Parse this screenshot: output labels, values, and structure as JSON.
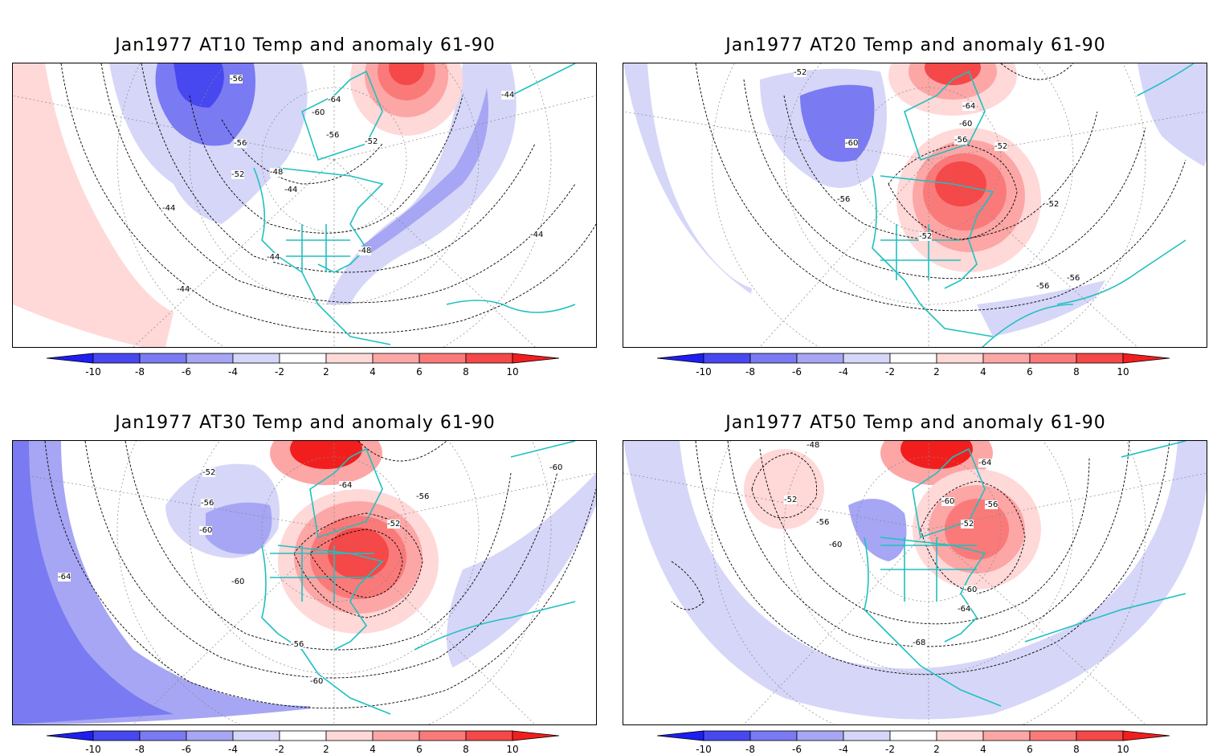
{
  "panels": [
    {
      "id": "at10",
      "title": "Jan1977 AT10 Temp and anomaly 61-90",
      "contour_labels": [
        "-56",
        "-64",
        "-60",
        "-56",
        "-56",
        "-52",
        "-52",
        "-48",
        "-44",
        "-44",
        "-44",
        "-44",
        "-48",
        "-44",
        "-44"
      ],
      "anomaly_blobs": [
        {
          "sign": "warm",
          "level": 10
        },
        {
          "sign": "cold",
          "level": -8
        },
        {
          "sign": "cold",
          "level": -4
        },
        {
          "sign": "warm",
          "level": 2
        }
      ]
    },
    {
      "id": "at20",
      "title": "Jan1977 AT20 Temp and anomaly 61-90",
      "contour_labels": [
        "-52",
        "-64",
        "-60",
        "-60",
        "-56",
        "-52",
        "-56",
        "-52",
        "-52",
        "-56",
        "-56"
      ],
      "anomaly_blobs": [
        {
          "sign": "warm",
          "level": 10
        },
        {
          "sign": "warm",
          "level": 8
        },
        {
          "sign": "cold",
          "level": -6
        },
        {
          "sign": "cold",
          "level": -2
        }
      ]
    },
    {
      "id": "at30",
      "title": "Jan1977 AT30 Temp and anomaly 61-90",
      "contour_labels": [
        "-52",
        "-64",
        "-56",
        "-56",
        "-52",
        "-60",
        "-60",
        "-64",
        "-60",
        "-56",
        "-60"
      ],
      "anomaly_blobs": [
        {
          "sign": "warm",
          "level": 10
        },
        {
          "sign": "warm",
          "level": 8
        },
        {
          "sign": "cold",
          "level": -6
        },
        {
          "sign": "cold",
          "level": -4
        }
      ]
    },
    {
      "id": "at50",
      "title": "Jan1977 AT50 Temp and anomaly 61-90",
      "contour_labels": [
        "-48",
        "-64",
        "-52",
        "-56",
        "-60",
        "-60",
        "-56",
        "-52",
        "-60",
        "-64",
        "-68"
      ],
      "anomaly_blobs": [
        {
          "sign": "warm",
          "level": 10
        },
        {
          "sign": "warm",
          "level": 6
        },
        {
          "sign": "cold",
          "level": -4
        },
        {
          "sign": "cold",
          "level": -2
        }
      ]
    }
  ],
  "colorbar": {
    "ticks": [
      "-10",
      "-8",
      "-6",
      "-4",
      "-2",
      "2",
      "4",
      "6",
      "8",
      "10"
    ],
    "colors": [
      "#1e1ef2",
      "#4848f0",
      "#7a7af2",
      "#a6a6f4",
      "#d6d6f8",
      "#ffffff",
      "#ffd8d8",
      "#fca6a6",
      "#fa7a7a",
      "#f54848",
      "#f21e1e"
    ]
  },
  "colors": {
    "coastline": "#20c0c0",
    "contour": "#000000",
    "grid": "#888888"
  }
}
